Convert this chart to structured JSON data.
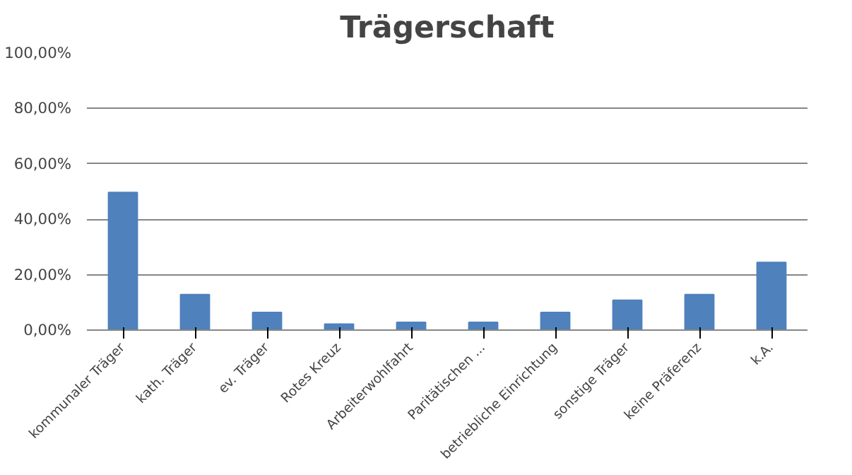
{
  "chart_data": {
    "type": "bar",
    "title": "Trägerschaft",
    "categories": [
      "kommunaler Träger",
      "kath. Träger",
      "ev. Träger",
      "Rotes Kreuz",
      "Arbeiterwohlfahrt",
      "Paritätischen ...",
      "betriebliche Einrichtung",
      "sonstige Träger",
      "keine Präferenz",
      "k.A."
    ],
    "values": [
      49.7,
      12.8,
      6.4,
      2.2,
      2.8,
      2.8,
      6.4,
      10.8,
      12.8,
      24.4
    ],
    "color": "#4f81bd",
    "ylim": [
      0,
      100
    ],
    "yticks": [
      {
        "value": 0,
        "label": "0,00%"
      },
      {
        "value": 20,
        "label": "20,00%"
      },
      {
        "value": 40,
        "label": "40,00%"
      },
      {
        "value": 60,
        "label": "60,00%"
      },
      {
        "value": 80,
        "label": "80,00%"
      },
      {
        "value": 100,
        "label": "100,00%"
      }
    ],
    "grid": "y"
  }
}
